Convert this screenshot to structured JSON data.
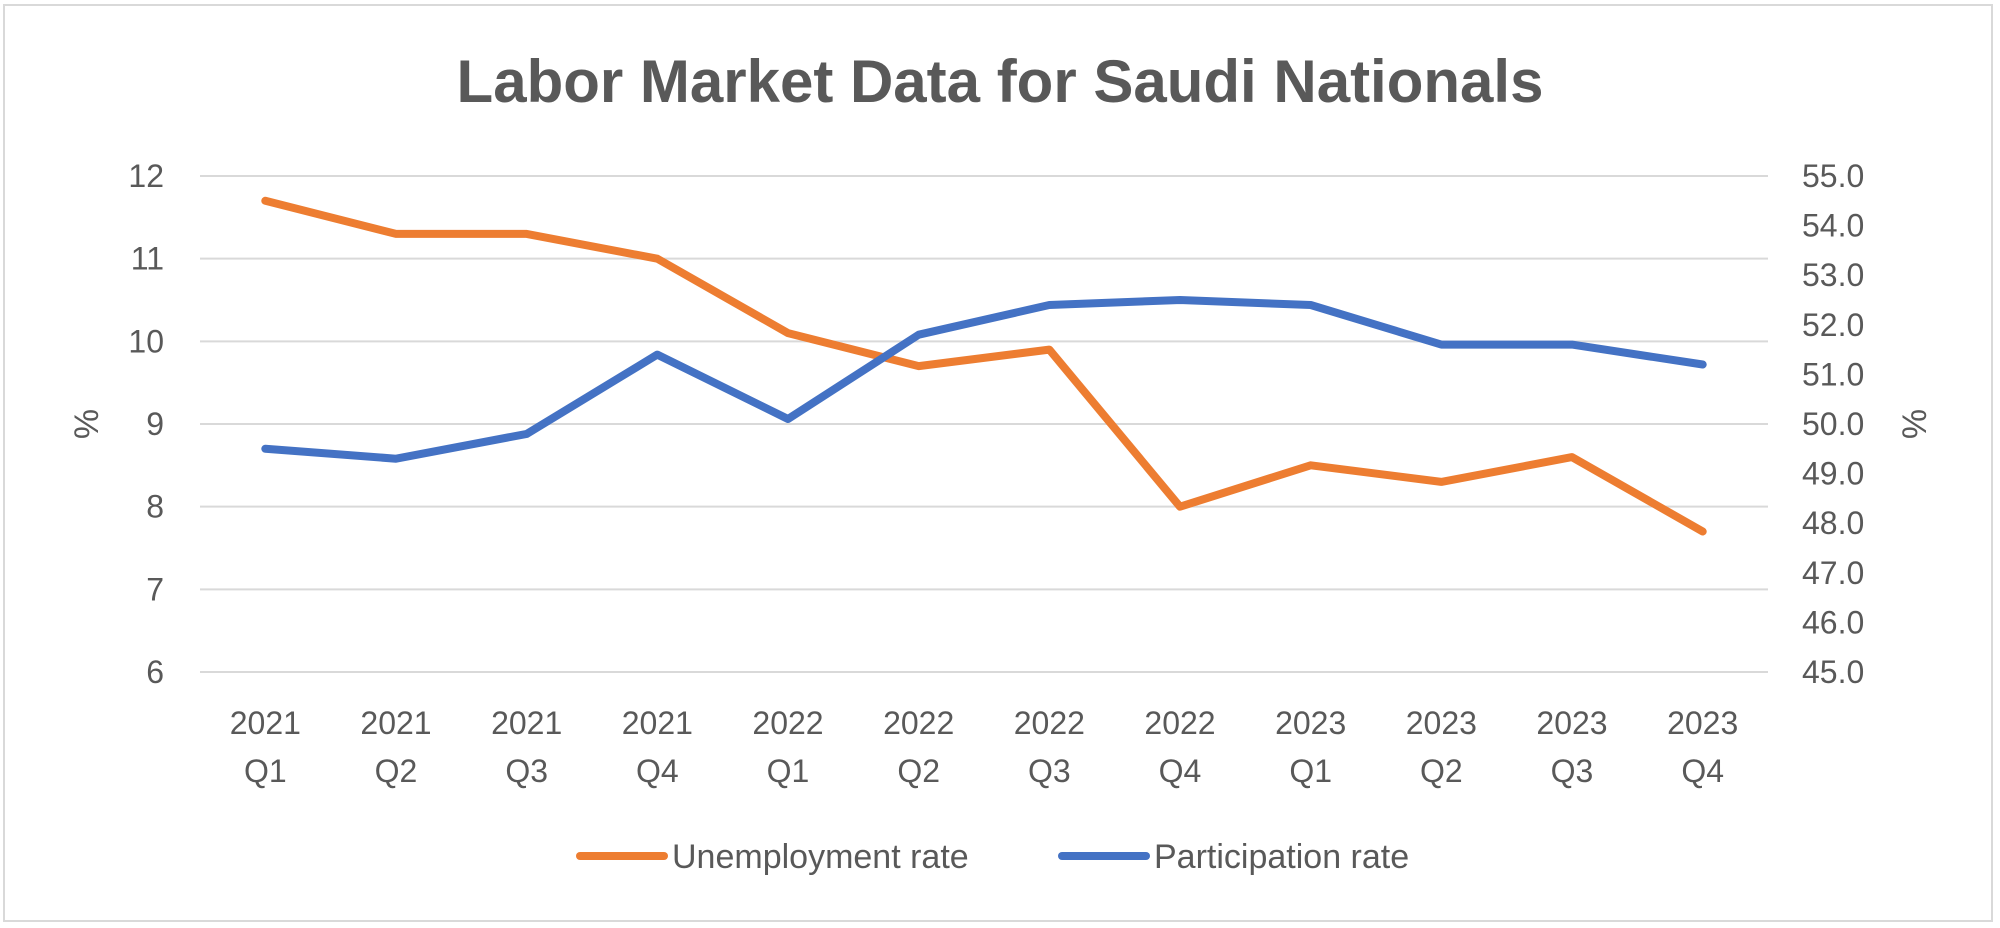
{
  "chart_data": {
    "type": "line",
    "title": "Labor Market Data for Saudi Nationals",
    "categories": [
      [
        "2021",
        "Q1"
      ],
      [
        "2021",
        "Q2"
      ],
      [
        "2021",
        "Q3"
      ],
      [
        "2021",
        "Q4"
      ],
      [
        "2022",
        "Q1"
      ],
      [
        "2022",
        "Q2"
      ],
      [
        "2022",
        "Q3"
      ],
      [
        "2022",
        "Q4"
      ],
      [
        "2023",
        "Q1"
      ],
      [
        "2023",
        "Q2"
      ],
      [
        "2023",
        "Q3"
      ],
      [
        "2023",
        "Q4"
      ]
    ],
    "ylabel_left": "%",
    "ylabel_right": "%",
    "ylim_left": [
      6,
      12
    ],
    "yticks_left": [
      "6",
      "7",
      "8",
      "9",
      "10",
      "11",
      "12"
    ],
    "ylim_right": [
      45,
      55
    ],
    "yticks_right": [
      "45.0",
      "46.0",
      "47.0",
      "48.0",
      "49.0",
      "50.0",
      "51.0",
      "52.0",
      "53.0",
      "54.0",
      "55.0"
    ],
    "grid": true,
    "legend_position": "bottom",
    "series": [
      {
        "name": "Unemployment rate",
        "axis": "left",
        "color": "#ED7D31",
        "values": [
          11.7,
          11.3,
          11.3,
          11.0,
          10.1,
          9.7,
          9.9,
          8.0,
          8.5,
          8.3,
          8.6,
          7.7
        ]
      },
      {
        "name": "Participation rate",
        "axis": "right",
        "color": "#4472C4",
        "values": [
          49.5,
          49.3,
          49.8,
          51.4,
          50.1,
          51.8,
          52.4,
          52.5,
          52.4,
          51.6,
          51.6,
          51.2
        ]
      }
    ]
  }
}
